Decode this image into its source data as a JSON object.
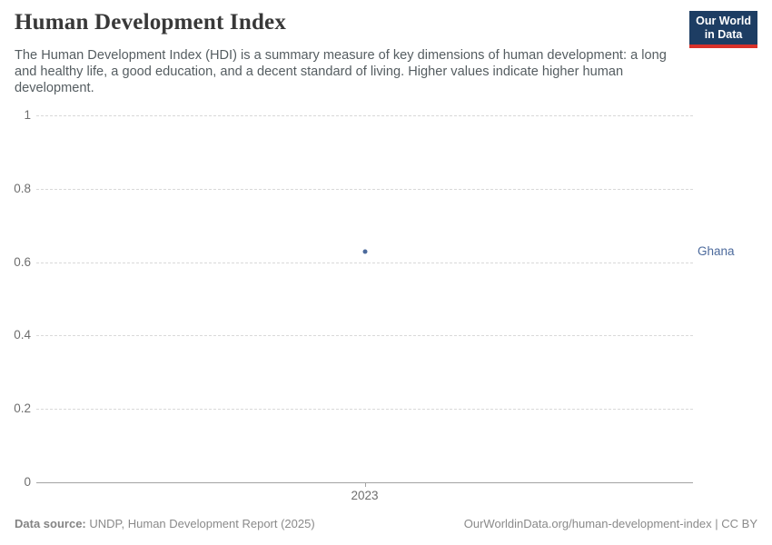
{
  "header": {
    "title": "Human Development Index",
    "subtitle": "The Human Development Index (HDI) is a summary measure of key dimensions of human development: a long and healthy life, a good education, and a decent standard of living. Higher values indicate higher human development.",
    "logo": {
      "line1": "Our World",
      "line2": "in Data"
    }
  },
  "chart_data": {
    "type": "scatter",
    "title": "Human Development Index",
    "x": [
      2023
    ],
    "series": [
      {
        "name": "Ghana",
        "values": [
          0.628
        ],
        "color": "#4c6a9c"
      }
    ],
    "xlabel": "",
    "ylabel": "",
    "ylim": [
      0,
      1
    ],
    "yticks": [
      0,
      0.2,
      0.4,
      0.6,
      0.8,
      1
    ],
    "ytick_labels": [
      "0",
      "0.2",
      "0.4",
      "0.6",
      "0.8",
      "1"
    ],
    "xticks": [
      2023
    ],
    "xtick_labels": [
      "2023"
    ],
    "grid": "horizontal-dashed",
    "legend_position": "entity-label-right-of-plot"
  },
  "footer": {
    "source_label": "Data source:",
    "source_text": " UNDP, Human Development Report (2025)",
    "credit": "OurWorldinData.org/human-development-index | CC BY"
  },
  "colors": {
    "series_blue": "#4c6a9c",
    "logo_navy": "#1d3d63",
    "logo_red": "#d8312a",
    "grid_gray": "#d9d9d9",
    "axis_gray": "#a3a3a3",
    "tick_text_gray": "#6e6e6e",
    "footer_gray": "#8a8a8a",
    "title_gray": "#383838",
    "subtitle_gray": "#555d61"
  }
}
